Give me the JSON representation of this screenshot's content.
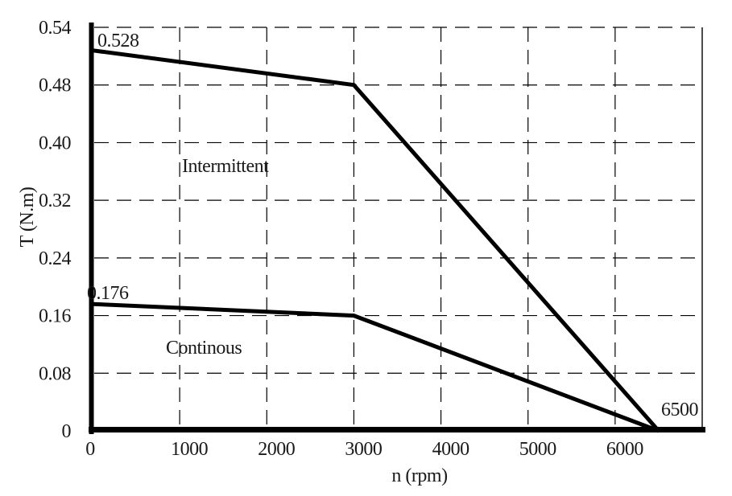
{
  "chart_data": {
    "type": "line",
    "title": "",
    "xlabel": "n (rpm)",
    "ylabel": "T (N.m)",
    "xlim": [
      0,
      7000
    ],
    "ylim": [
      0,
      0.54
    ],
    "grid": "dashed",
    "legend_position": "inline-labels",
    "x_ticks": [
      {
        "value": 0,
        "label": "0"
      },
      {
        "value": 1000,
        "label": "1000"
      },
      {
        "value": 2000,
        "label": "2000"
      },
      {
        "value": 3000,
        "label": "3000"
      },
      {
        "value": 4000,
        "label": "4000"
      },
      {
        "value": 5000,
        "label": "5000"
      },
      {
        "value": 6000,
        "label": "6000"
      }
    ],
    "y_ticks": [
      {
        "value": 0,
        "label": "0"
      },
      {
        "value": 0.08,
        "label": "0.08"
      },
      {
        "value": 0.16,
        "label": "0.16"
      },
      {
        "value": 0.24,
        "label": "0.24"
      },
      {
        "value": 0.32,
        "label": "0.32"
      },
      {
        "value": 0.4,
        "label": "0.40"
      },
      {
        "value": 0.48,
        "label": "0.48"
      },
      {
        "value": 0.54,
        "label": "0.54"
      }
    ],
    "series": [
      {
        "name": "Intermittent",
        "points": [
          [
            0,
            0.528
          ],
          [
            3000,
            0.48
          ],
          [
            6500,
            0
          ]
        ]
      },
      {
        "name": "Continous",
        "points": [
          [
            0,
            0.176
          ],
          [
            3000,
            0.16
          ],
          [
            6500,
            0
          ]
        ]
      }
    ],
    "annotations": [
      {
        "id": "intermittent-peak-torque",
        "text": "0.528"
      },
      {
        "id": "continuous-rated-torque",
        "text": "0.176"
      },
      {
        "id": "max-speed",
        "text": "6500"
      }
    ]
  },
  "colors": {
    "line": "#000000",
    "grid": "#000000",
    "axis": "#000000",
    "text": "#1a1a1a",
    "background": "#ffffff"
  }
}
